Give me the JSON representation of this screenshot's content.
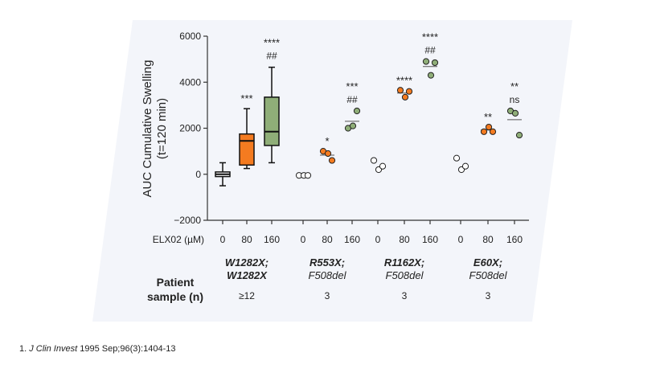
{
  "chart_data": {
    "type": "box+scatter",
    "ylabel_line1": "AUC Cumulative Swelling",
    "ylabel_line2": "(t=120 min)",
    "ylim": [
      -2000,
      6000
    ],
    "yticks": [
      -2000,
      0,
      2000,
      4000,
      6000
    ],
    "xaxis_title": "ELX02 (µM)",
    "row_title_line1": "Patient",
    "row_title_line2": "sample (n)",
    "colors": {
      "dose_0": "#ffffff",
      "dose_80": "#f47b20",
      "dose_160": "#8fae78",
      "panel_bg": "#f3f5fa",
      "axis": "#333333"
    },
    "groups": [
      {
        "line1": "W1282X;",
        "line2": "W1282X",
        "n": "≥12",
        "points": [
          {
            "dose": "0",
            "box": {
              "whisker_low": -500,
              "q1": -100,
              "median": 0,
              "q3": 100,
              "whisker_high": 500
            },
            "stars": "",
            "hashes": ""
          },
          {
            "dose": "80",
            "box": {
              "whisker_low": 250,
              "q1": 400,
              "median": 1450,
              "q3": 1750,
              "whisker_high": 2850
            },
            "stars": "***",
            "hashes": ""
          },
          {
            "dose": "160",
            "box": {
              "whisker_low": 500,
              "q1": 1250,
              "median": 1850,
              "q3": 3350,
              "whisker_high": 4650
            },
            "stars": "****",
            "hashes": "##"
          }
        ]
      },
      {
        "line1": "R553X;",
        "line2": "F508del",
        "n": "3",
        "points": [
          {
            "dose": "0",
            "values": [
              -50,
              -50,
              -50
            ],
            "mean": -50,
            "stars": "",
            "hashes": ""
          },
          {
            "dose": "80",
            "values": [
              1000,
              900,
              600
            ],
            "mean": 830,
            "stars": "*",
            "hashes": ""
          },
          {
            "dose": "160",
            "values": [
              2000,
              2100,
              2750
            ],
            "mean": 2300,
            "stars": "***",
            "hashes": "##"
          }
        ]
      },
      {
        "line1": "R1162X;",
        "line2": "F508del",
        "n": "3",
        "points": [
          {
            "dose": "0",
            "values": [
              600,
              200,
              350
            ],
            "mean": 380,
            "stars": "",
            "hashes": ""
          },
          {
            "dose": "80",
            "values": [
              3650,
              3350,
              3600
            ],
            "mean": 3530,
            "stars": "****",
            "hashes": ""
          },
          {
            "dose": "160",
            "values": [
              4900,
              4300,
              4850
            ],
            "mean": 4680,
            "stars": "****",
            "hashes": "##"
          }
        ]
      },
      {
        "line1": "E60X;",
        "line2": "F508del",
        "n": "3",
        "points": [
          {
            "dose": "0",
            "values": [
              700,
              200,
              350
            ],
            "mean": 420,
            "stars": "",
            "hashes": ""
          },
          {
            "dose": "80",
            "values": [
              1850,
              2050,
              1850
            ],
            "mean": 1920,
            "stars": "**",
            "hashes": ""
          },
          {
            "dose": "160",
            "values": [
              2750,
              2650,
              1700
            ],
            "mean": 2370,
            "stars": "**",
            "hashes": "ns"
          }
        ]
      }
    ]
  },
  "footnote": {
    "prefix": "1. ",
    "journal": "J Clin Invest",
    "rest": " 1995 Sep;96(3):1404-13"
  }
}
